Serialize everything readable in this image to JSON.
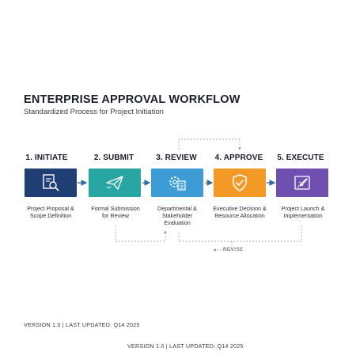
{
  "header": {
    "title": "ENTERPRISE APPROVAL WORKFLOW",
    "subtitle": "Standardized Process for Project Initiation"
  },
  "steps": [
    {
      "label": "1. INITIATE",
      "desc_line1": "Project Proposal &",
      "desc_line2": "Scope Definition",
      "desc_line3": "",
      "color": "#1f3e73",
      "icon": "document-search-icon"
    },
    {
      "label": "2. SUBMIT",
      "desc_line1": "Formal Submission",
      "desc_line2": "for Review",
      "desc_line3": "",
      "color": "#27a6a4",
      "icon": "paper-plane-icon"
    },
    {
      "label": "3. REVIEW",
      "desc_line1": "Departmental &",
      "desc_line2": "Stakeholder",
      "desc_line3": "Evaluation",
      "color": "#3d9cd6",
      "icon": "gear-checklist-icon"
    },
    {
      "label": "4. APPROVE",
      "desc_line1": "Executive Decision &",
      "desc_line2": "Resource Allocation",
      "desc_line3": "",
      "color": "#f39a26",
      "icon": "shield-check-icon"
    },
    {
      "label": "5. EXECUTE",
      "desc_line1": "Project Launch &",
      "desc_line2": "Implementation",
      "desc_line3": "",
      "color": "#6f4fb0",
      "icon": "rocket-icon"
    }
  ],
  "revise_label": "REVISE",
  "footer": {
    "line1": "VERSION 1.0 | LAST UPDATED: Q14 2025",
    "line2": "VERSION 1.0 | LAST UPDATED: Q14 2025"
  }
}
